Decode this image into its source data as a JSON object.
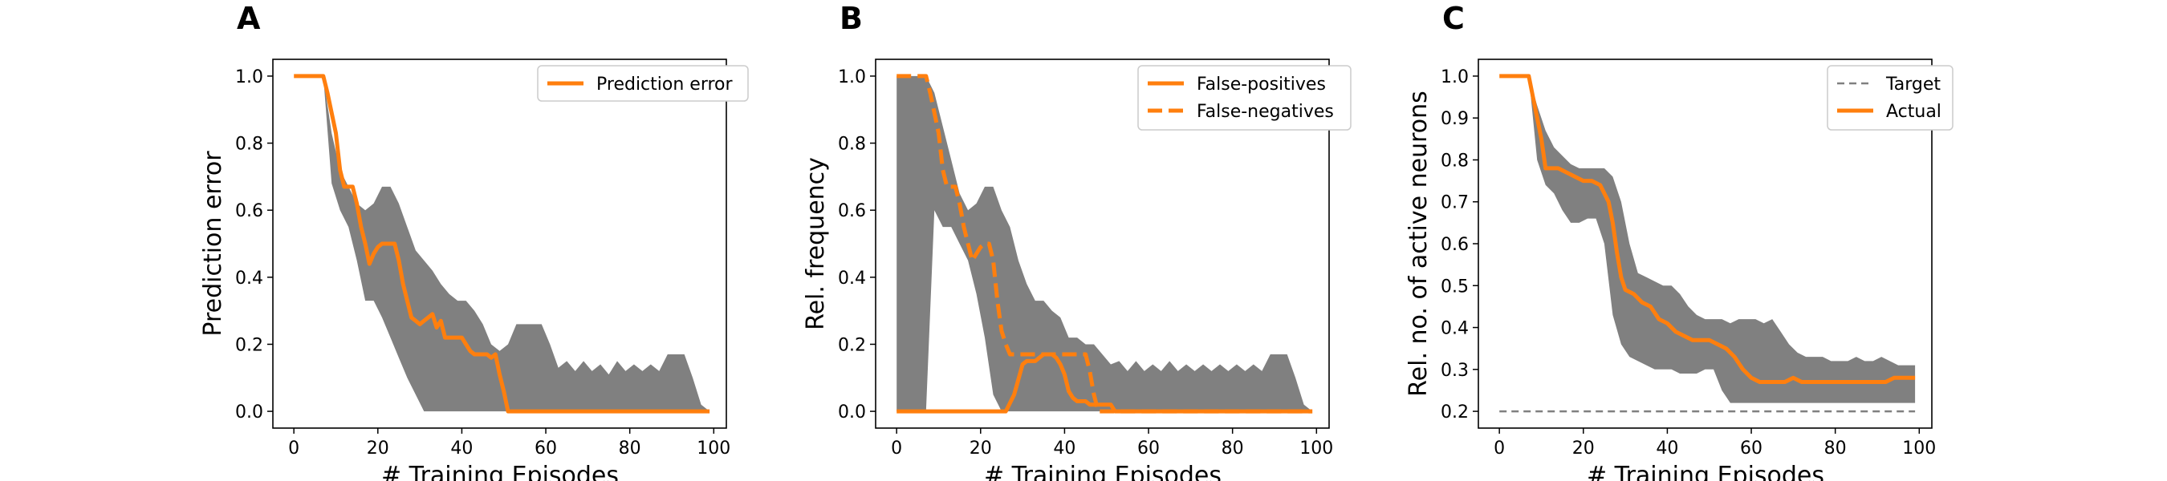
{
  "colors": {
    "band": "#808080",
    "line": "#ff7f0e",
    "target": "#808080",
    "frame": "#000000"
  },
  "chart_data": [
    {
      "type": "line",
      "panel": "A",
      "xlabel": "# Training Episodes",
      "ylabel": "Prediction error",
      "xlim": [
        -5,
        103
      ],
      "ylim": [
        -0.05,
        1.05
      ],
      "xticks": [
        0,
        20,
        40,
        60,
        80,
        100
      ],
      "yticks": [
        0.0,
        0.2,
        0.4,
        0.6,
        0.8,
        1.0
      ],
      "ytick_labels": [
        "0.0",
        "0.2",
        "0.4",
        "0.6",
        "0.8",
        "1.0"
      ],
      "legend_position": "top-right",
      "band": {
        "x": [
          0,
          7,
          9,
          11,
          13,
          15,
          17,
          19,
          21,
          23,
          25,
          27,
          29,
          31,
          33,
          35,
          37,
          39,
          41,
          43,
          45,
          47,
          49,
          51,
          53,
          55,
          57,
          59,
          61,
          63,
          65,
          67,
          69,
          71,
          73,
          75,
          77,
          79,
          81,
          83,
          85,
          87,
          89,
          91,
          93,
          95,
          97,
          99
        ],
        "upper": [
          1,
          1,
          0.83,
          0.72,
          0.67,
          0.62,
          0.6,
          0.62,
          0.67,
          0.67,
          0.62,
          0.55,
          0.48,
          0.45,
          0.42,
          0.38,
          0.35,
          0.33,
          0.33,
          0.3,
          0.26,
          0.2,
          0.18,
          0.2,
          0.26,
          0.26,
          0.26,
          0.26,
          0.2,
          0.13,
          0.15,
          0.12,
          0.15,
          0.12,
          0.14,
          0.11,
          0.15,
          0.12,
          0.14,
          0.12,
          0.14,
          0.12,
          0.17,
          0.17,
          0.17,
          0.1,
          0.02,
          0.0
        ],
        "lower": [
          1,
          1,
          0.68,
          0.6,
          0.55,
          0.45,
          0.33,
          0.33,
          0.28,
          0.22,
          0.16,
          0.1,
          0.05,
          0.0,
          0.0,
          0.0,
          0.0,
          0.0,
          0.0,
          0.0,
          0.0,
          0.0,
          0.0,
          0.0,
          0.0,
          0.0,
          0.0,
          0.0,
          0.0,
          0.0,
          0.0,
          0.0,
          0.0,
          0.0,
          0.0,
          0.0,
          0.0,
          0.0,
          0.0,
          0.0,
          0.0,
          0.0,
          0.0,
          0.0,
          0.0,
          0.0,
          0.0,
          0.0
        ]
      },
      "series": [
        {
          "name": "Prediction error",
          "style": "solid",
          "x": [
            0,
            7,
            8,
            10,
            11,
            12,
            14,
            15,
            16,
            17,
            18,
            19,
            20,
            21,
            22,
            23,
            24,
            25,
            26,
            27,
            28,
            29,
            30,
            31,
            32,
            33,
            34,
            35,
            36,
            37,
            38,
            39,
            40,
            41,
            42,
            43,
            44,
            46,
            47,
            48,
            49,
            50,
            51,
            52,
            55,
            60,
            70,
            80,
            90,
            99
          ],
          "y": [
            1,
            1,
            0.95,
            0.83,
            0.72,
            0.67,
            0.67,
            0.62,
            0.55,
            0.5,
            0.44,
            0.47,
            0.49,
            0.5,
            0.5,
            0.5,
            0.5,
            0.45,
            0.38,
            0.33,
            0.28,
            0.27,
            0.26,
            0.27,
            0.28,
            0.29,
            0.25,
            0.27,
            0.22,
            0.22,
            0.22,
            0.22,
            0.22,
            0.2,
            0.18,
            0.17,
            0.17,
            0.17,
            0.16,
            0.17,
            0.11,
            0.06,
            0.0,
            0.0,
            0.0,
            0.0,
            0.0,
            0.0,
            0.0,
            0.0
          ]
        }
      ]
    },
    {
      "type": "line",
      "panel": "B",
      "xlabel": "# Training Episodes",
      "ylabel": "Rel. frequency",
      "xlim": [
        -5,
        103
      ],
      "ylim": [
        -0.05,
        1.05
      ],
      "xticks": [
        0,
        20,
        40,
        60,
        80,
        100
      ],
      "yticks": [
        0.0,
        0.2,
        0.4,
        0.6,
        0.8,
        1.0
      ],
      "ytick_labels": [
        "0.0",
        "0.2",
        "0.4",
        "0.6",
        "0.8",
        "1.0"
      ],
      "legend_position": "top-right",
      "band": {
        "x": [
          0,
          7,
          9,
          11,
          13,
          15,
          17,
          19,
          21,
          23,
          25,
          27,
          29,
          31,
          33,
          35,
          37,
          39,
          41,
          43,
          45,
          47,
          49,
          51,
          53,
          55,
          57,
          59,
          61,
          63,
          65,
          67,
          69,
          71,
          73,
          75,
          77,
          79,
          81,
          83,
          85,
          87,
          89,
          91,
          93,
          95,
          97,
          99
        ],
        "upper": [
          1,
          1,
          0.95,
          0.85,
          0.75,
          0.65,
          0.6,
          0.62,
          0.67,
          0.67,
          0.6,
          0.55,
          0.45,
          0.38,
          0.33,
          0.33,
          0.3,
          0.28,
          0.22,
          0.22,
          0.2,
          0.2,
          0.17,
          0.14,
          0.15,
          0.12,
          0.15,
          0.12,
          0.14,
          0.12,
          0.15,
          0.12,
          0.14,
          0.12,
          0.14,
          0.12,
          0.14,
          0.12,
          0.14,
          0.12,
          0.14,
          0.12,
          0.17,
          0.17,
          0.17,
          0.1,
          0.02,
          0.0
        ],
        "lower": [
          0,
          0,
          0.6,
          0.55,
          0.55,
          0.5,
          0.45,
          0.35,
          0.22,
          0.05,
          0.0,
          0.0,
          0.0,
          0.0,
          0.0,
          0.0,
          0.0,
          0.0,
          0.0,
          0.0,
          0.0,
          0.0,
          0.0,
          0.0,
          0.0,
          0.0,
          0.0,
          0.0,
          0.0,
          0.0,
          0.0,
          0.0,
          0.0,
          0.0,
          0.0,
          0.0,
          0.0,
          0.0,
          0.0,
          0.0,
          0.0,
          0.0,
          0.0,
          0.0,
          0.0,
          0.0,
          0.0,
          0.0
        ]
      },
      "series": [
        {
          "name": "False-positives",
          "style": "solid",
          "x": [
            0,
            24,
            26,
            28,
            30,
            31,
            33,
            34,
            35,
            36,
            37,
            38,
            39,
            40,
            41,
            42,
            43,
            44,
            45,
            46,
            47,
            48,
            49,
            50,
            51,
            52,
            55,
            60,
            70,
            80,
            90,
            99
          ],
          "y": [
            0,
            0,
            0.0,
            0.05,
            0.14,
            0.15,
            0.15,
            0.16,
            0.17,
            0.17,
            0.17,
            0.16,
            0.14,
            0.11,
            0.06,
            0.04,
            0.03,
            0.03,
            0.03,
            0.02,
            0.02,
            0.02,
            0.02,
            0.02,
            0.02,
            0.0,
            0.0,
            0.0,
            0.0,
            0.0,
            0.0,
            0.0
          ]
        },
        {
          "name": "False-negatives",
          "style": "dashed",
          "x": [
            0,
            7,
            8,
            10,
            11,
            12,
            14,
            15,
            16,
            17,
            18,
            19,
            20,
            21,
            22,
            23,
            24,
            25,
            26,
            27,
            28,
            29,
            30,
            31,
            33,
            35,
            37,
            38,
            40,
            42,
            44,
            45,
            46,
            47,
            48,
            49,
            50,
            52,
            55,
            60,
            70,
            80,
            90,
            99
          ],
          "y": [
            1,
            1,
            0.95,
            0.83,
            0.72,
            0.67,
            0.67,
            0.62,
            0.55,
            0.5,
            0.45,
            0.47,
            0.49,
            0.5,
            0.5,
            0.45,
            0.33,
            0.24,
            0.2,
            0.17,
            0.17,
            0.17,
            0.17,
            0.17,
            0.17,
            0.17,
            0.17,
            0.17,
            0.17,
            0.17,
            0.17,
            0.17,
            0.12,
            0.05,
            0.0,
            0.0,
            0.0,
            0.0,
            0.0,
            0.0,
            0.0,
            0.0,
            0.0,
            0.0
          ]
        }
      ]
    },
    {
      "type": "line",
      "panel": "C",
      "xlabel": "# Training Episodes",
      "ylabel": "Rel. no. of active neurons",
      "xlim": [
        -5,
        103
      ],
      "ylim": [
        0.16,
        1.04
      ],
      "xticks": [
        0,
        20,
        40,
        60,
        80,
        100
      ],
      "yticks": [
        0.2,
        0.3,
        0.4,
        0.5,
        0.6,
        0.7,
        0.8,
        0.9,
        1.0
      ],
      "ytick_labels": [
        "0.2",
        "0.3",
        "0.4",
        "0.5",
        "0.6",
        "0.7",
        "0.8",
        "0.9",
        "1.0"
      ],
      "legend_position": "top-right",
      "band": {
        "x": [
          0,
          7,
          9,
          11,
          13,
          15,
          17,
          19,
          21,
          23,
          25,
          27,
          29,
          31,
          33,
          35,
          37,
          39,
          41,
          43,
          45,
          47,
          49,
          51,
          53,
          55,
          57,
          59,
          61,
          63,
          65,
          67,
          69,
          71,
          73,
          75,
          77,
          79,
          81,
          83,
          85,
          87,
          89,
          91,
          93,
          95,
          97,
          99
        ],
        "upper": [
          1,
          1,
          0.93,
          0.87,
          0.83,
          0.81,
          0.79,
          0.78,
          0.78,
          0.78,
          0.78,
          0.76,
          0.7,
          0.6,
          0.53,
          0.52,
          0.51,
          0.5,
          0.5,
          0.48,
          0.45,
          0.43,
          0.42,
          0.42,
          0.42,
          0.41,
          0.42,
          0.42,
          0.42,
          0.41,
          0.42,
          0.39,
          0.36,
          0.34,
          0.33,
          0.33,
          0.33,
          0.32,
          0.32,
          0.32,
          0.33,
          0.32,
          0.32,
          0.33,
          0.32,
          0.31,
          0.31,
          0.31
        ],
        "lower": [
          1,
          1,
          0.8,
          0.74,
          0.72,
          0.68,
          0.65,
          0.65,
          0.66,
          0.66,
          0.6,
          0.43,
          0.36,
          0.33,
          0.32,
          0.31,
          0.3,
          0.3,
          0.3,
          0.29,
          0.29,
          0.29,
          0.3,
          0.3,
          0.25,
          0.22,
          0.22,
          0.22,
          0.22,
          0.22,
          0.22,
          0.22,
          0.22,
          0.22,
          0.22,
          0.22,
          0.22,
          0.22,
          0.22,
          0.22,
          0.22,
          0.22,
          0.22,
          0.22,
          0.22,
          0.22,
          0.22,
          0.22
        ]
      },
      "series": [
        {
          "name": "Target",
          "style": "dashed-thin",
          "x": [
            0,
            99
          ],
          "y": [
            0.2,
            0.2
          ]
        },
        {
          "name": "Actual",
          "style": "solid",
          "x": [
            0,
            7,
            8,
            10,
            11,
            12,
            14,
            16,
            18,
            20,
            22,
            24,
            26,
            27,
            28,
            29,
            30,
            32,
            34,
            36,
            38,
            40,
            42,
            44,
            46,
            48,
            50,
            52,
            54,
            56,
            58,
            60,
            62,
            64,
            66,
            68,
            70,
            72,
            74,
            76,
            78,
            80,
            82,
            84,
            86,
            88,
            90,
            92,
            94,
            96,
            99
          ],
          "y": [
            1,
            1,
            0.95,
            0.85,
            0.78,
            0.78,
            0.78,
            0.77,
            0.76,
            0.75,
            0.75,
            0.74,
            0.7,
            0.65,
            0.58,
            0.52,
            0.49,
            0.48,
            0.46,
            0.45,
            0.42,
            0.41,
            0.39,
            0.38,
            0.37,
            0.37,
            0.37,
            0.36,
            0.35,
            0.33,
            0.3,
            0.28,
            0.27,
            0.27,
            0.27,
            0.27,
            0.28,
            0.27,
            0.27,
            0.27,
            0.27,
            0.27,
            0.27,
            0.27,
            0.27,
            0.27,
            0.27,
            0.27,
            0.28,
            0.28,
            0.28
          ]
        }
      ]
    }
  ]
}
